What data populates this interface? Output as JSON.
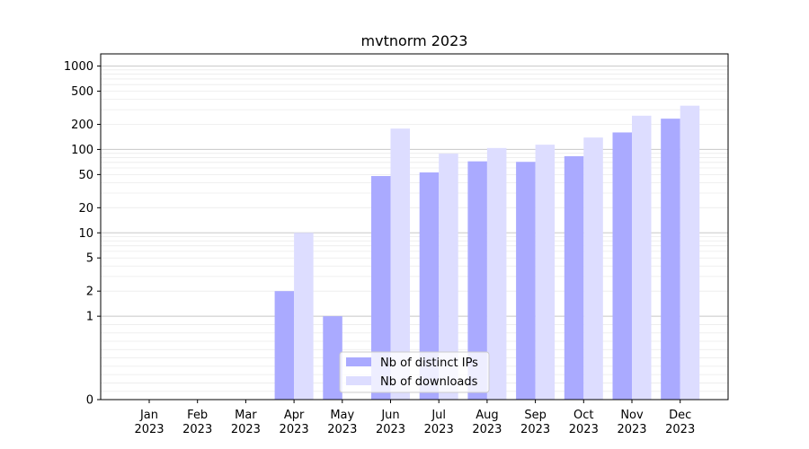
{
  "chart_data": {
    "type": "bar",
    "title": "mvtnorm 2023",
    "xlabel": "",
    "ylabel": "",
    "categories": [
      [
        "Jan",
        "2023"
      ],
      [
        "Feb",
        "2023"
      ],
      [
        "Mar",
        "2023"
      ],
      [
        "Apr",
        "2023"
      ],
      [
        "May",
        "2023"
      ],
      [
        "Jun",
        "2023"
      ],
      [
        "Jul",
        "2023"
      ],
      [
        "Aug",
        "2023"
      ],
      [
        "Sep",
        "2023"
      ],
      [
        "Oct",
        "2023"
      ],
      [
        "Nov",
        "2023"
      ],
      [
        "Dec",
        "2023"
      ]
    ],
    "series": [
      {
        "name": "Nb of distinct IPs",
        "color": "#aaaaff",
        "values": [
          0,
          0,
          0,
          2,
          1,
          48,
          53,
          72,
          71,
          83,
          160,
          234
        ]
      },
      {
        "name": "Nb of downloads",
        "color": "#ddddff",
        "values": [
          0,
          0,
          0,
          10,
          0,
          178,
          89,
          104,
          114,
          139,
          254,
          335
        ]
      }
    ],
    "y_scale": "symlog",
    "ylim": [
      0,
      1400
    ],
    "yticks": [
      0,
      1,
      2,
      5,
      10,
      20,
      50,
      100,
      200,
      500,
      1000
    ],
    "grid": "y-major-and-minor",
    "legend_position": "lower center"
  }
}
